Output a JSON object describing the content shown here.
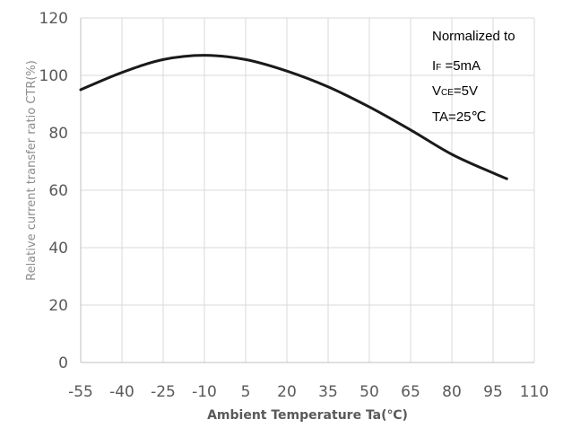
{
  "chart_data": {
    "type": "line",
    "title": "",
    "xlabel": "Ambient Temperature Ta(℃)",
    "ylabel": "Relative current transfer ratio CTR(%)",
    "xlim": [
      -55,
      110
    ],
    "ylim": [
      0,
      120
    ],
    "x_ticks": [
      "-55",
      "-40",
      "-25",
      "-10",
      "5",
      "20",
      "35",
      "50",
      "65",
      "80",
      "95",
      "110"
    ],
    "y_ticks": [
      "0",
      "20",
      "40",
      "60",
      "80",
      "100",
      "120"
    ],
    "grid": true,
    "series": [
      {
        "color": "#1a1a1a",
        "x": [
          -55,
          -40,
          -25,
          -10,
          5,
          20,
          35,
          50,
          65,
          80,
          95,
          100
        ],
        "y": [
          95,
          101,
          105.5,
          107,
          105.5,
          101.5,
          96,
          89,
          81,
          72.5,
          66,
          64
        ]
      }
    ],
    "annotation": {
      "line1": "Normalized to",
      "line2_prefix": "I",
      "line2_sub": "F",
      "line2_suffix": " =5mA",
      "line3_prefix": "V",
      "line3_sub": "CE",
      "line3_suffix": "=5V",
      "line4": "TA=25℃"
    }
  }
}
